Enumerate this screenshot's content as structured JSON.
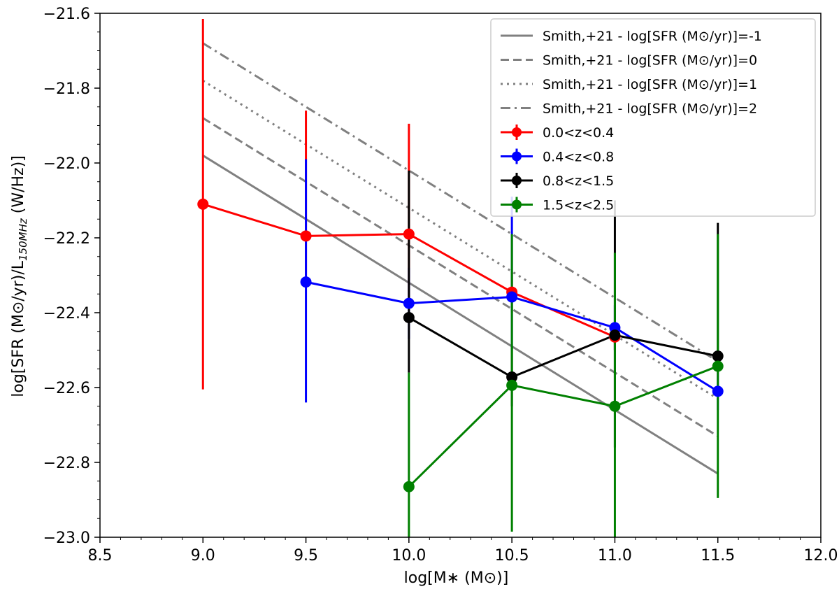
{
  "chart_data": {
    "type": "line",
    "title": "",
    "xlabel": "log[M∗ (M⊙)]",
    "ylabel": "log[SFR (M⊙/yr)/L150MHz (W/Hz)]",
    "ylabel_parts": {
      "pre": "log[SFR (M⊙/yr)/L",
      "sub": "150MHz",
      "post": " (W/Hz)]"
    },
    "xlim": [
      8.5,
      12.0
    ],
    "ylim": [
      -23.0,
      -21.6
    ],
    "xticks": [
      8.5,
      9.0,
      9.5,
      10.0,
      10.5,
      11.0,
      11.5,
      12.0
    ],
    "xtick_labels": [
      "8.5",
      "9.0",
      "9.5",
      "10.0",
      "10.5",
      "11.0",
      "11.5",
      "12.0"
    ],
    "yticks": [
      -23.0,
      -22.8,
      -22.6,
      -22.4,
      -22.2,
      -22.0,
      -21.8,
      -21.6
    ],
    "ytick_labels": [
      "−23.0",
      "−22.8",
      "−22.6",
      "−22.4",
      "−22.2",
      "−22.0",
      "−21.8",
      "−21.6"
    ],
    "grid": false,
    "legend_position": "top-right",
    "reference_lines": [
      {
        "name": "Smith,+21 - log[SFR (M⊙/yr)]=-1",
        "style": "solid",
        "color": "#808080",
        "x": [
          9.0,
          11.5
        ],
        "y": [
          -21.98,
          -22.83
        ]
      },
      {
        "name": "Smith,+21 - log[SFR (M⊙/yr)]=0",
        "style": "dashed",
        "color": "#808080",
        "x": [
          9.0,
          11.5
        ],
        "y": [
          -21.88,
          -22.73
        ]
      },
      {
        "name": "Smith,+21 - log[SFR (M⊙/yr)]=1",
        "style": "dotted",
        "color": "#808080",
        "x": [
          9.0,
          11.5
        ],
        "y": [
          -21.78,
          -22.63
        ]
      },
      {
        "name": "Smith,+21 - log[SFR (M⊙/yr)]=2",
        "style": "dashdot",
        "color": "#808080",
        "x": [
          9.0,
          11.5
        ],
        "y": [
          -21.68,
          -22.53
        ]
      }
    ],
    "series": [
      {
        "name": "0.0<z<0.4",
        "color": "#ff0000",
        "x": [
          9.0,
          9.5,
          10.0,
          10.5,
          11.0
        ],
        "y": [
          -22.11,
          -22.195,
          -22.19,
          -22.345,
          -22.465
        ],
        "err_lo": [
          -22.605,
          -22.3,
          -22.38,
          -22.4,
          -22.5
        ],
        "err_hi": [
          -21.615,
          -21.86,
          -21.895,
          -22.29,
          -22.43
        ]
      },
      {
        "name": "0.4<z<0.8",
        "color": "#0000ff",
        "x": [
          9.5,
          10.0,
          10.5,
          11.0,
          11.5
        ],
        "y": [
          -22.318,
          -22.375,
          -22.358,
          -22.44,
          -22.61
        ],
        "err_lo": [
          -22.64,
          -22.47,
          -22.5,
          -22.5,
          -22.66
        ],
        "err_hi": [
          -21.99,
          -22.28,
          -22.09,
          -22.38,
          -22.56
        ]
      },
      {
        "name": "0.8<z<1.5",
        "color": "#000000",
        "x": [
          10.0,
          10.5,
          11.0,
          11.5
        ],
        "y": [
          -22.413,
          -22.572,
          -22.46,
          -22.516
        ],
        "err_lo": [
          -22.56,
          -22.65,
          -22.76,
          -22.56
        ],
        "err_hi": [
          -22.02,
          -22.49,
          -22.1,
          -22.16
        ]
      },
      {
        "name": "1.5<z<2.5",
        "color": "#008000",
        "x": [
          10.0,
          10.5,
          11.0,
          11.5
        ],
        "y": [
          -22.865,
          -22.594,
          -22.65,
          -22.543
        ],
        "err_lo": [
          -23.0,
          -22.985,
          -23.0,
          -22.895
        ],
        "err_hi": [
          -22.56,
          -22.19,
          -22.24,
          -22.19
        ]
      }
    ]
  }
}
